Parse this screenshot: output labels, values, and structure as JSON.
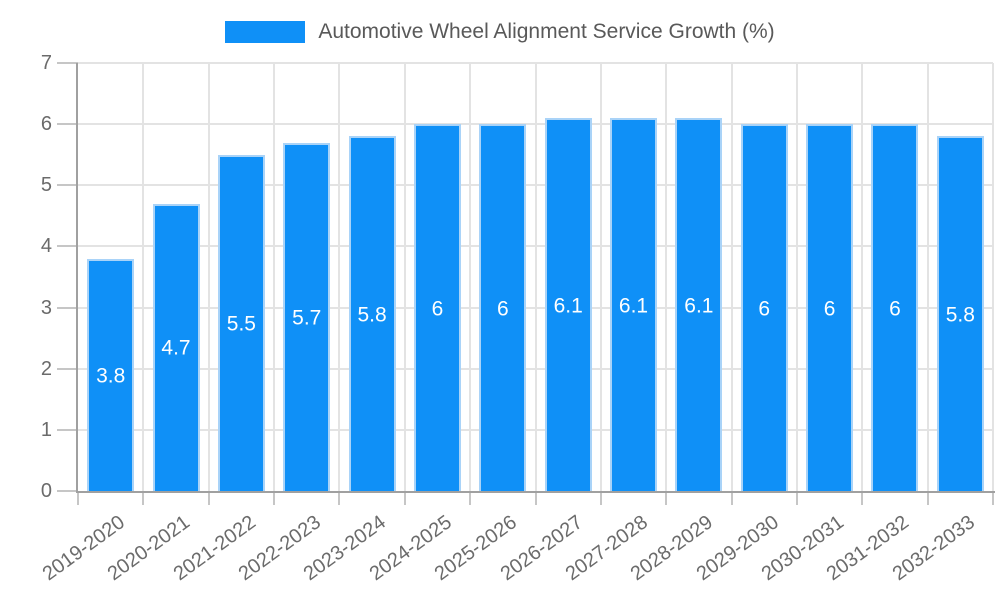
{
  "chart_data": {
    "type": "bar",
    "title": "Automotive Wheel Alignment Service Growth (%)",
    "categories": [
      "2019-2020",
      "2020-2021",
      "2021-2022",
      "2022-2023",
      "2023-2024",
      "2024-2025",
      "2025-2026",
      "2026-2027",
      "2027-2028",
      "2028-2029",
      "2029-2030",
      "2030-2031",
      "2031-2032",
      "2032-2033"
    ],
    "values": [
      3.8,
      4.7,
      5.5,
      5.7,
      5.8,
      6,
      6,
      6.1,
      6.1,
      6.1,
      6,
      6,
      6,
      5.8
    ],
    "ylim": [
      0,
      7
    ],
    "ytick_step": 1,
    "grid": true,
    "legend_position": "top",
    "colors": {
      "bar_fill": "#0f90f7",
      "bar_border": "#a9d3f8",
      "value_label": "#ffffff",
      "gridline": "#e3e3e3",
      "tick_mark": "#c6c6c6",
      "axis_line": "#a0a0a0",
      "tick_text": "#6b6b6b",
      "legend_text": "#595959"
    }
  }
}
